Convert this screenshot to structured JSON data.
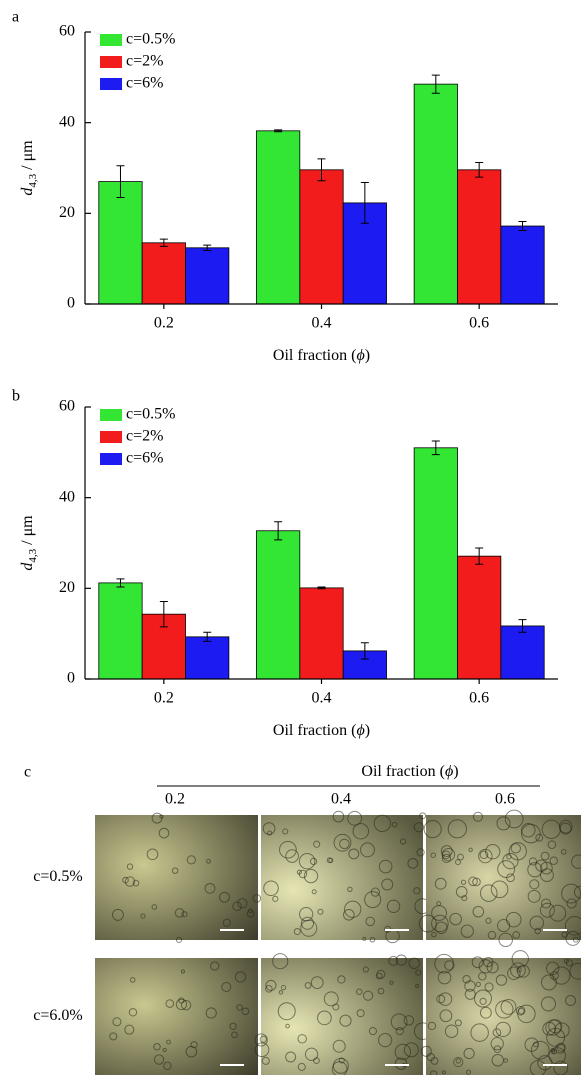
{
  "chart_data": [
    {
      "type": "bar",
      "label": "a",
      "categories": [
        "0.2",
        "0.4",
        "0.6"
      ],
      "series": [
        {
          "name": "c=0.5%",
          "color": "#33e633",
          "values": [
            27.0,
            38.2,
            48.5
          ],
          "errors": [
            3.5,
            0.2,
            2.0
          ]
        },
        {
          "name": "c=2%",
          "color": "#f21c1c",
          "values": [
            13.5,
            29.6,
            29.6
          ],
          "errors": [
            0.8,
            2.4,
            1.6
          ]
        },
        {
          "name": "c=6%",
          "color": "#1c1cf2",
          "values": [
            12.4,
            22.3,
            17.2
          ],
          "errors": [
            0.6,
            4.5,
            1.0
          ]
        }
      ],
      "ylim": [
        0,
        60
      ],
      "yticks": [
        0,
        20,
        40,
        60
      ],
      "ylabel": {
        "symbol": "d",
        "subscript": "4,3",
        "unit": " / μm"
      },
      "xlabel": {
        "text": "Oil fraction (",
        "symbol": "ϕ",
        "close": ")"
      },
      "legend": "upper left"
    },
    {
      "type": "bar",
      "label": "b",
      "categories": [
        "0.2",
        "0.4",
        "0.6"
      ],
      "series": [
        {
          "name": "c=0.5%",
          "color": "#33e633",
          "values": [
            21.2,
            32.7,
            51.0
          ],
          "errors": [
            0.9,
            2.0,
            1.5
          ]
        },
        {
          "name": "c=2%",
          "color": "#f21c1c",
          "values": [
            14.3,
            20.1,
            27.1
          ],
          "errors": [
            2.8,
            0.2,
            1.8
          ]
        },
        {
          "name": "c=6%",
          "color": "#1c1cf2",
          "values": [
            9.3,
            6.2,
            11.7
          ],
          "errors": [
            1.0,
            1.8,
            1.4
          ]
        }
      ],
      "ylim": [
        0,
        60
      ],
      "yticks": [
        0,
        20,
        40,
        60
      ],
      "ylabel": {
        "symbol": "d",
        "subscript": "4,3",
        "unit": " / μm"
      },
      "xlabel": {
        "text": "Oil fraction (",
        "symbol": "ϕ",
        "close": ")"
      },
      "legend": "upper left"
    }
  ],
  "micrographs": {
    "label": "c",
    "title": {
      "text": "Oil fraction (",
      "symbol": "ϕ",
      "close": ")"
    },
    "columns": [
      "0.2",
      "0.4",
      "0.6"
    ],
    "rows": [
      "c=0.5%",
      "c=6.0%"
    ]
  }
}
